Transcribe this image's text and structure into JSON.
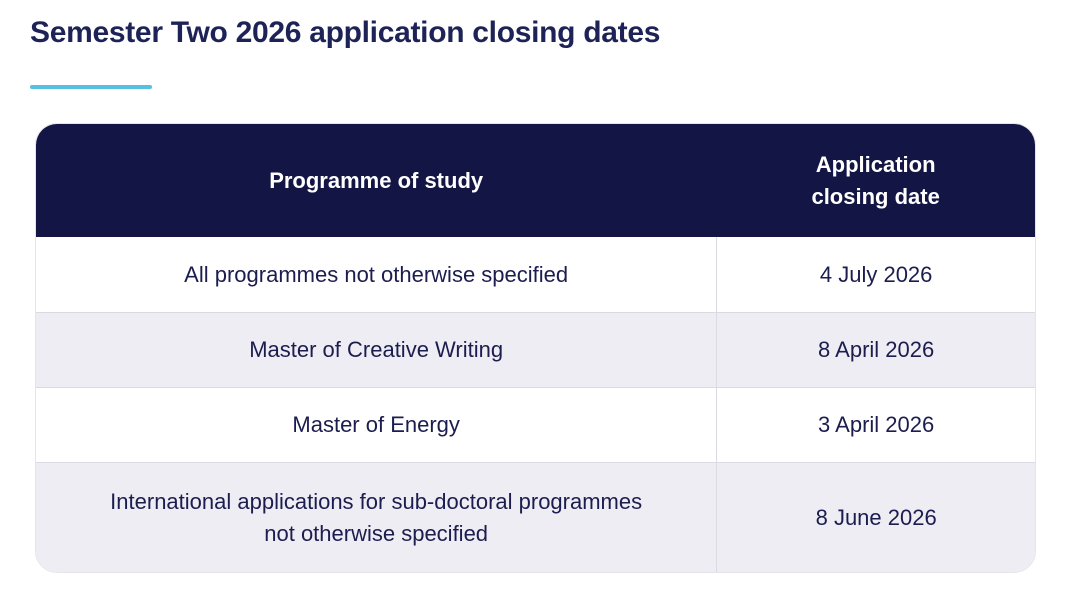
{
  "page": {
    "title": "Semester Two 2026 application closing dates"
  },
  "table": {
    "columns": {
      "programme": "Programme of study",
      "closing_date": "Application closing date"
    },
    "rows": [
      {
        "programme": "All programmes not otherwise specified",
        "closing_date": "4 July 2026"
      },
      {
        "programme": "Master of Creative Writing",
        "closing_date": "8 April 2026"
      },
      {
        "programme": "Master of Energy",
        "closing_date": "3 April 2026"
      },
      {
        "programme": "International applications for sub-doctoral programmes not otherwise specified",
        "closing_date": "8 June 2026"
      }
    ]
  },
  "colors": {
    "header_bg": "#131545",
    "accent_underline": "#56c0e3",
    "title_text": "#1e2357",
    "cell_text": "#1c1d4f",
    "row_alt_bg": "#ededf3",
    "divider": "#d9dae3"
  }
}
